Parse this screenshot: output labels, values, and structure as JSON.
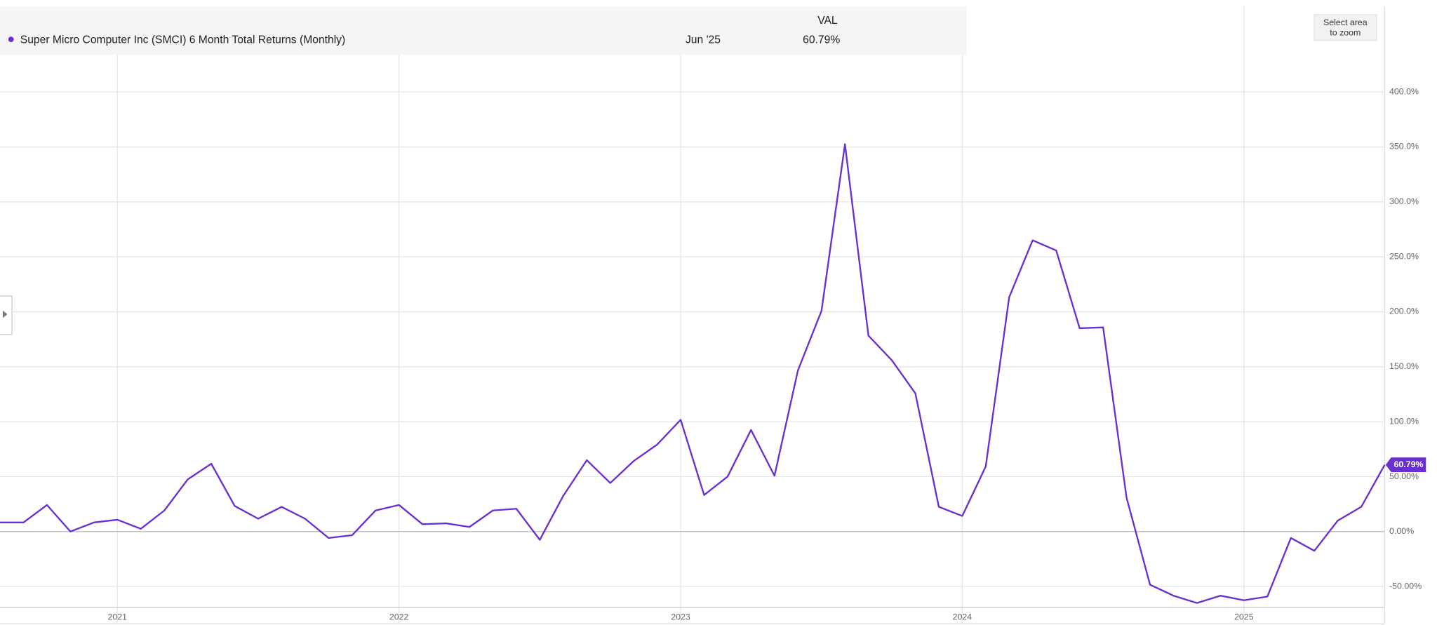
{
  "chart_data": {
    "type": "line",
    "title": "Super Micro Computer Inc (SMCI) 6 Month Total Returns (Monthly)",
    "legend_header": "VAL",
    "latest_date_label": "Jun '25",
    "last_value_label": "60.79%",
    "zoom_button": [
      "Select area",
      "to zoom"
    ],
    "x": [
      "2020-07",
      "2020-08",
      "2020-09",
      "2020-10",
      "2020-11",
      "2020-12",
      "2021-01",
      "2021-02",
      "2021-03",
      "2021-04",
      "2021-05",
      "2021-06",
      "2021-07",
      "2021-08",
      "2021-09",
      "2021-10",
      "2021-11",
      "2021-12",
      "2022-01",
      "2022-02",
      "2022-03",
      "2022-04",
      "2022-05",
      "2022-06",
      "2022-07",
      "2022-08",
      "2022-09",
      "2022-10",
      "2022-11",
      "2022-12",
      "2023-01",
      "2023-02",
      "2023-03",
      "2023-04",
      "2023-05",
      "2023-06",
      "2023-07",
      "2023-08",
      "2023-09",
      "2023-10",
      "2023-11",
      "2023-12",
      "2024-01",
      "2024-02",
      "2024-03",
      "2024-04",
      "2024-05",
      "2024-06",
      "2024-07",
      "2024-08",
      "2024-09",
      "2024-10",
      "2024-11",
      "2024-12",
      "2025-01",
      "2025-02",
      "2025-03",
      "2025-04",
      "2025-05",
      "2025-06"
    ],
    "series": [
      {
        "name": "Super Micro Computer Inc (SMCI) 6 Month Total Returns (Monthly)",
        "color": "#6a2fd1",
        "values": [
          8.3,
          8.3,
          24.2,
          0,
          8.3,
          10.8,
          2.5,
          19.2,
          47.5,
          61.7,
          23.3,
          11.7,
          22.5,
          11.7,
          -5.8,
          -3.3,
          19.2,
          24.2,
          6.7,
          7.5,
          4.2,
          19.2,
          20.8,
          -7.5,
          32.5,
          65,
          44.2,
          64.2,
          79.2,
          101.7,
          33.3,
          50,
          92.5,
          50.8,
          146.7,
          200.8,
          352.5,
          178.3,
          155.8,
          125.8,
          22.5,
          14.2,
          59.2,
          213.3,
          265,
          255.8,
          185,
          185.8,
          30.8,
          -48.3,
          -58.3,
          -65,
          -58.3,
          -62.5,
          -59.2,
          -5.8,
          -17.5,
          10,
          22.5,
          60.79
        ]
      }
    ],
    "xlim": [
      "2020-08",
      "2025-07"
    ],
    "xticks": [
      {
        "value": "2021-01",
        "label": "2021"
      },
      {
        "value": "2022-01",
        "label": "2022"
      },
      {
        "value": "2023-01",
        "label": "2023"
      },
      {
        "value": "2024-01",
        "label": "2024"
      },
      {
        "value": "2025-01",
        "label": "2025"
      }
    ],
    "ylim": [
      -69,
      432
    ],
    "yticks": [
      {
        "value": -50,
        "label": "-50.00%"
      },
      {
        "value": 0,
        "label": "0.00%"
      },
      {
        "value": 50,
        "label": "50.00%"
      },
      {
        "value": 100,
        "label": "100.0%"
      },
      {
        "value": 150,
        "label": "150.0%"
      },
      {
        "value": 200,
        "label": "200.0%"
      },
      {
        "value": 250,
        "label": "250.0%"
      },
      {
        "value": 300,
        "label": "300.0%"
      },
      {
        "value": 350,
        "label": "350.0%"
      },
      {
        "value": 400,
        "label": "400.0%"
      }
    ],
    "grid": true
  }
}
